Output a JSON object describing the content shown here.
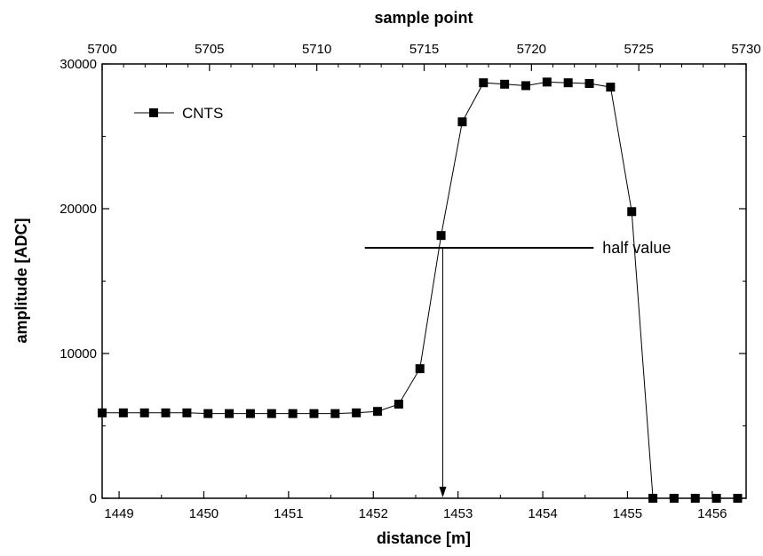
{
  "chart_data": {
    "type": "line",
    "xlabel": "distance [m]",
    "ylabel": "amplitude [ADC]",
    "x2label": "sample point",
    "xlim": [
      1448.8,
      1456.4
    ],
    "ylim": [
      0,
      30000
    ],
    "x2lim": [
      5700,
      5730
    ],
    "x_ticks": [
      "1449",
      "1450",
      "1451",
      "1452",
      "1453",
      "1454",
      "1455",
      "1456"
    ],
    "x_tick_values": [
      1449,
      1450,
      1451,
      1452,
      1453,
      1454,
      1455,
      1456
    ],
    "x2_ticks": [
      "5700",
      "5705",
      "5710",
      "5715",
      "5720",
      "5725",
      "5730"
    ],
    "x2_tick_values": [
      5700,
      5705,
      5710,
      5715,
      5720,
      5725,
      5730
    ],
    "y_ticks": [
      "0",
      "10000",
      "20000",
      "30000"
    ],
    "y_tick_values": [
      0,
      10000,
      20000,
      30000
    ],
    "grid": false,
    "legend_position": "top-left",
    "series": [
      {
        "name": "CNTS",
        "marker": "square",
        "color": "#000000",
        "x": [
          1448.8,
          1449.05,
          1449.3,
          1449.55,
          1449.8,
          1450.05,
          1450.3,
          1450.55,
          1450.8,
          1451.05,
          1451.3,
          1451.55,
          1451.8,
          1452.05,
          1452.3,
          1452.55,
          1452.8,
          1453.05,
          1453.3,
          1453.55,
          1453.8,
          1454.05,
          1454.3,
          1454.55,
          1454.8,
          1455.05,
          1455.3,
          1455.55,
          1455.8,
          1456.05,
          1456.3
        ],
        "y": [
          5900,
          5900,
          5900,
          5900,
          5900,
          5850,
          5850,
          5850,
          5850,
          5850,
          5850,
          5850,
          5900,
          6000,
          6500,
          8950,
          18150,
          26000,
          28700,
          28600,
          28500,
          28750,
          28700,
          28650,
          28400,
          19800,
          0,
          0,
          0,
          0,
          0
        ]
      }
    ],
    "annotation": {
      "text": "half value",
      "value": 17300,
      "x_from": 1451.9,
      "x_to": 1454.6,
      "arrow_x": 1452.82
    }
  }
}
